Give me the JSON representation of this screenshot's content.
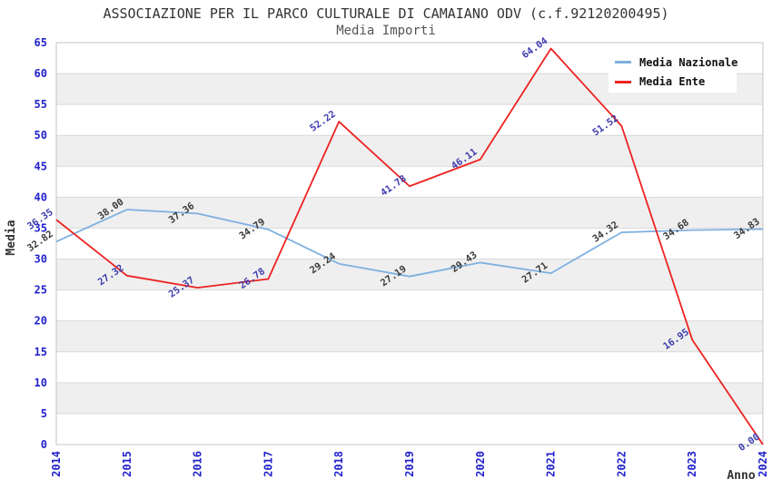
{
  "chart_data": {
    "type": "line",
    "title": "ASSOCIAZIONE PER IL PARCO CULTURALE DI CAMAIANO ODV (c.f.92120200495)",
    "subtitle": "Media Importi",
    "xlabel": "Anno",
    "ylabel": "Media",
    "categories": [
      "2014",
      "2015",
      "2016",
      "2017",
      "2018",
      "2019",
      "2020",
      "2021",
      "2022",
      "2023",
      "2024"
    ],
    "series": [
      {
        "name": "Media Nazionale",
        "color": "#7fb0e0",
        "label_color": "#3a3a3a",
        "values": [
          32.82,
          38.0,
          37.36,
          34.79,
          29.24,
          27.19,
          29.43,
          27.71,
          34.32,
          34.68,
          34.83
        ]
      },
      {
        "name": "Media Ente",
        "color": "#ee2222",
        "label_color": "#3c3cae",
        "values": [
          36.35,
          27.32,
          25.37,
          26.78,
          52.22,
          41.78,
          46.11,
          64.04,
          51.52,
          16.95,
          0.0
        ]
      }
    ],
    "ylim": [
      0,
      65
    ],
    "ytick_step": 5,
    "value_label_decimals": 2,
    "legend_position": "top-right",
    "grid": "alternating-horizontal-bands",
    "colors": {
      "tick_label": "#2222cc",
      "band": "#efefef",
      "gridline": "#d9d9d9",
      "plot_border": "#c4c4c4",
      "axis_title": "#333333",
      "title": "#333333",
      "subtitle": "#555555",
      "legend_bg": "#ffffff"
    }
  }
}
